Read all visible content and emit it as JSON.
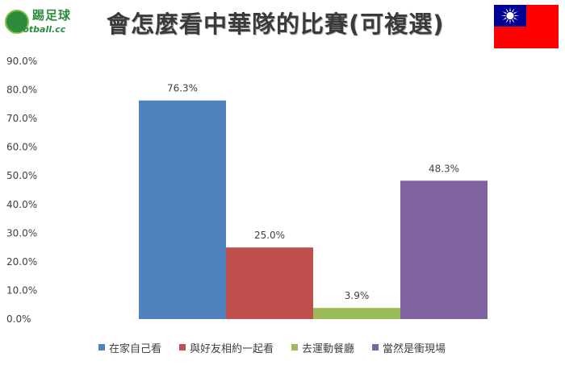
{
  "header": {
    "title": "會怎麼看中華隊的比賽(可複選)",
    "logo_zh": "踢足球",
    "logo_en": "football.cc"
  },
  "flag": {
    "name": "taiwan-flag",
    "colors": {
      "red": "#FE0000",
      "blue": "#000095",
      "sun": "#FFFFFF"
    }
  },
  "chart_data": {
    "type": "bar",
    "title": "會怎麼看中華隊的比賽(可複選)",
    "xlabel": "",
    "ylabel": "",
    "ylim": [
      0,
      90
    ],
    "yticks": [
      "0.0%",
      "10.0%",
      "20.0%",
      "30.0%",
      "40.0%",
      "50.0%",
      "60.0%",
      "70.0%",
      "80.0%",
      "90.0%"
    ],
    "grid": false,
    "legend_position": "bottom",
    "categories": [
      "在家自己看",
      "與好友相約一起看",
      "去運動餐廳",
      "當然是衝現場"
    ],
    "values": [
      76.3,
      25.0,
      3.9,
      48.3
    ],
    "value_labels": [
      "76.3%",
      "25.0%",
      "3.9%",
      "48.3%"
    ],
    "colors": [
      "#4F81BD",
      "#C0504D",
      "#9BBB59",
      "#8064A2"
    ]
  }
}
